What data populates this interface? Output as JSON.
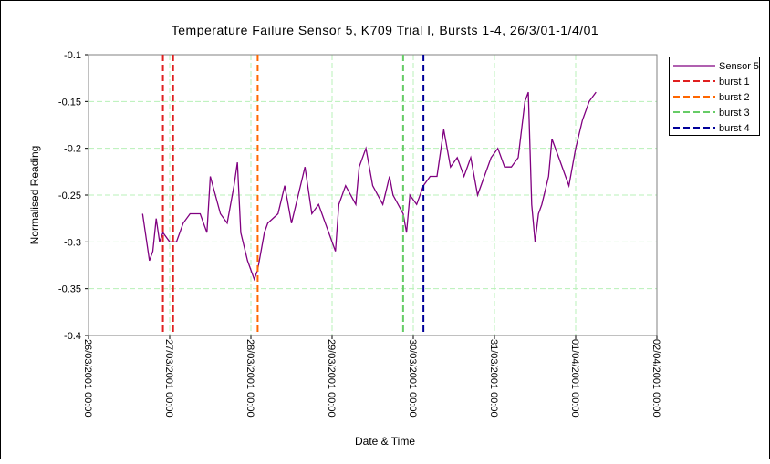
{
  "chart_data": {
    "type": "line",
    "title": "Temperature Failure Sensor 5, K709 Trial I, Bursts 1-4, 26/3/01-1/4/01",
    "x_label": "Date & Time",
    "y_label": "Normalised Reading",
    "xlim": [
      "26/03/2001 00:00",
      "02/04/2001 00:00"
    ],
    "xticks": [
      "26/03/2001 00:00",
      "27/03/2001 00:00",
      "28/03/2001 00:00",
      "29/03/2001 00:00",
      "30/03/2001 00:00",
      "31/03/2001 00:00",
      "01/04/2001 00:00",
      "02/04/2001 00:00"
    ],
    "ylim": [
      -0.4,
      -0.1
    ],
    "yticks": [
      -0.4,
      -0.35,
      -0.3,
      -0.25,
      -0.2,
      -0.15,
      -0.1
    ],
    "grid": true,
    "legend": "right",
    "series": [
      {
        "name": "Sensor 5",
        "color": "#800080",
        "x": [
          "26/03/2001 16:00",
          "26/03/2001 18:00",
          "26/03/2001 19:00",
          "26/03/2001 20:00",
          "26/03/2001 21:00",
          "26/03/2001 22:00",
          "27/03/2001 00:00",
          "27/03/2001 02:00",
          "27/03/2001 04:00",
          "27/03/2001 06:00",
          "27/03/2001 09:00",
          "27/03/2001 11:00",
          "27/03/2001 12:00",
          "27/03/2001 15:00",
          "27/03/2001 17:00",
          "27/03/2001 19:00",
          "27/03/2001 20:00",
          "27/03/2001 21:00",
          "27/03/2001 23:00",
          "28/03/2001 01:00",
          "28/03/2001 02:00",
          "28/03/2001 04:00",
          "28/03/2001 05:00",
          "28/03/2001 08:00",
          "28/03/2001 10:00",
          "28/03/2001 12:00",
          "28/03/2001 14:00",
          "28/03/2001 16:00",
          "28/03/2001 18:00",
          "28/03/2001 20:00",
          "28/03/2001 22:00",
          "29/03/2001 01:00",
          "29/03/2001 02:00",
          "29/03/2001 04:00",
          "29/03/2001 07:00",
          "29/03/2001 08:00",
          "29/03/2001 10:00",
          "29/03/2001 12:00",
          "29/03/2001 15:00",
          "29/03/2001 17:00",
          "29/03/2001 18:00",
          "29/03/2001 21:00",
          "29/03/2001 22:00",
          "29/03/2001 23:00",
          "30/03/2001 01:00",
          "30/03/2001 03:00",
          "30/03/2001 05:00",
          "30/03/2001 07:00",
          "30/03/2001 09:00",
          "30/03/2001 11:00",
          "30/03/2001 13:00",
          "30/03/2001 15:00",
          "30/03/2001 17:00",
          "30/03/2001 19:00",
          "30/03/2001 21:00",
          "30/03/2001 23:00",
          "31/03/2001 01:00",
          "31/03/2001 03:00",
          "31/03/2001 05:00",
          "31/03/2001 07:00",
          "31/03/2001 09:00",
          "31/03/2001 10:00",
          "31/03/2001 11:00",
          "31/03/2001 12:00",
          "31/03/2001 13:00",
          "31/03/2001 14:00",
          "31/03/2001 16:00",
          "31/03/2001 17:00",
          "31/03/2001 19:00",
          "31/03/2001 21:00",
          "31/03/2001 22:00",
          "01/04/2001 00:00",
          "01/04/2001 02:00",
          "01/04/2001 04:00",
          "01/04/2001 06:00"
        ],
        "values": [
          -0.27,
          -0.32,
          -0.31,
          -0.275,
          -0.3,
          -0.29,
          -0.3,
          -0.3,
          -0.28,
          -0.27,
          -0.27,
          -0.29,
          -0.23,
          -0.27,
          -0.28,
          -0.24,
          -0.215,
          -0.29,
          -0.32,
          -0.34,
          -0.33,
          -0.29,
          -0.28,
          -0.27,
          -0.24,
          -0.28,
          -0.25,
          -0.22,
          -0.27,
          -0.26,
          -0.28,
          -0.31,
          -0.26,
          -0.24,
          -0.26,
          -0.22,
          -0.2,
          -0.24,
          -0.26,
          -0.23,
          -0.25,
          -0.27,
          -0.29,
          -0.25,
          -0.26,
          -0.24,
          -0.23,
          -0.23,
          -0.18,
          -0.22,
          -0.21,
          -0.23,
          -0.21,
          -0.25,
          -0.23,
          -0.21,
          -0.2,
          -0.22,
          -0.22,
          -0.21,
          -0.15,
          -0.14,
          -0.26,
          -0.3,
          -0.27,
          -0.26,
          -0.23,
          -0.19,
          -0.21,
          -0.23,
          -0.24,
          -0.2,
          -0.17,
          -0.15,
          -0.14
        ]
      },
      {
        "name": "burst 1",
        "color": "#e02020",
        "x": [
          "26/03/2001 22:00",
          "27/03/2001 01:00"
        ]
      },
      {
        "name": "burst 2",
        "color": "#ff6600",
        "x": [
          "28/03/2001 02:00"
        ]
      },
      {
        "name": "burst 3",
        "color": "#66cc66",
        "x": [
          "29/03/2001 21:00"
        ]
      },
      {
        "name": "burst 4",
        "color": "#000099",
        "x": [
          "30/03/2001 03:00"
        ]
      }
    ]
  }
}
